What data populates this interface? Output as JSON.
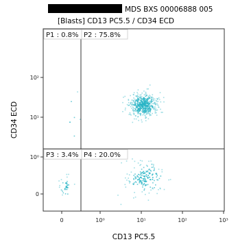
{
  "chart_data": {
    "type": "scatter",
    "title": "MDS BXS 00006888 005",
    "subtitle": "[Blasts] CD13 PC5.5 / CD34 ECD",
    "xlabel": "CD13 PC5.5",
    "ylabel": "CD34 ECD",
    "x_axis": {
      "scale": "biexponential",
      "range": [
        -4.2,
        1000
      ],
      "tick_labels": [
        "0",
        "10⁰",
        "10¹",
        "10²",
        "10³"
      ],
      "tick_values": [
        0,
        1,
        10,
        100,
        1000
      ]
    },
    "y_axis": {
      "scale": "biexponential",
      "range": [
        -0.8,
        100
      ],
      "tick_labels": [
        "0",
        "10⁰",
        "10¹",
        "10²"
      ],
      "tick_values": [
        0,
        1,
        10,
        100
      ]
    },
    "gates": {
      "x_threshold": 0.5,
      "y_threshold": 1.6
    },
    "quadrants": [
      {
        "id": "P1",
        "label": "P1 : 0.8%",
        "percent": 0.8
      },
      {
        "id": "P2",
        "label": "P2 : 75.8%",
        "percent": 75.8
      },
      {
        "id": "P3",
        "label": "P3 : 3.4%",
        "percent": 3.4
      },
      {
        "id": "P4",
        "label": "P4 : 20.0%",
        "percent": 20.0
      }
    ],
    "event_clusters": [
      {
        "quadrant": "P2",
        "x_center": 11,
        "y_center": 21,
        "count": 520
      },
      {
        "quadrant": "P4",
        "x_center": 12,
        "y_center": 0.45,
        "count": 170
      },
      {
        "quadrant": "P3",
        "x_center": 0.1,
        "y_center": 0.2,
        "count": 30
      },
      {
        "quadrant": "P1",
        "x_center": 0.2,
        "y_center": 7,
        "count": 6
      }
    ],
    "point_color": "#2bb5c6",
    "redaction_color": "#000000"
  }
}
